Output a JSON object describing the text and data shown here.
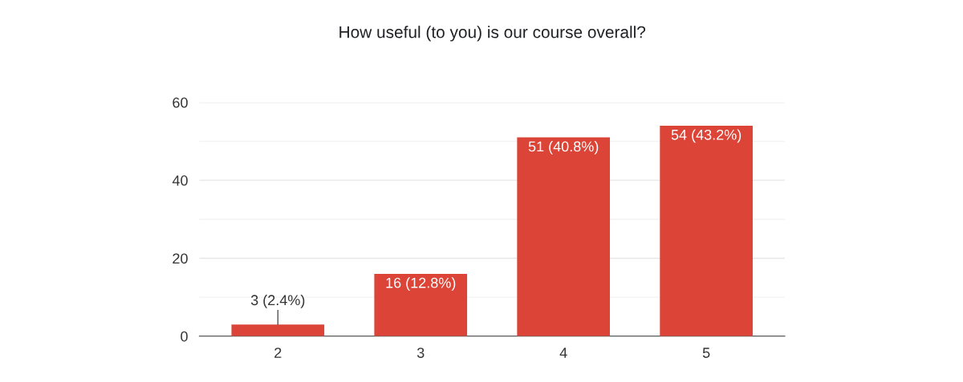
{
  "chart_data": {
    "type": "bar",
    "title": "How useful (to you) is our course overall?",
    "categories": [
      "2",
      "3",
      "4",
      "5"
    ],
    "values": [
      3,
      16,
      51,
      54
    ],
    "value_labels": [
      "3 (2.4%)",
      "16 (12.8%)",
      "51 (40.8%)",
      "54 (43.2%)"
    ],
    "color": "#db4437",
    "ylim": [
      0,
      60
    ],
    "yticks": [
      0,
      {
        "value": 10,
        "label": null
      },
      20,
      {
        "value": 30,
        "label": null
      },
      40,
      {
        "value": 50,
        "label": null
      },
      60
    ],
    "grid": "y"
  }
}
